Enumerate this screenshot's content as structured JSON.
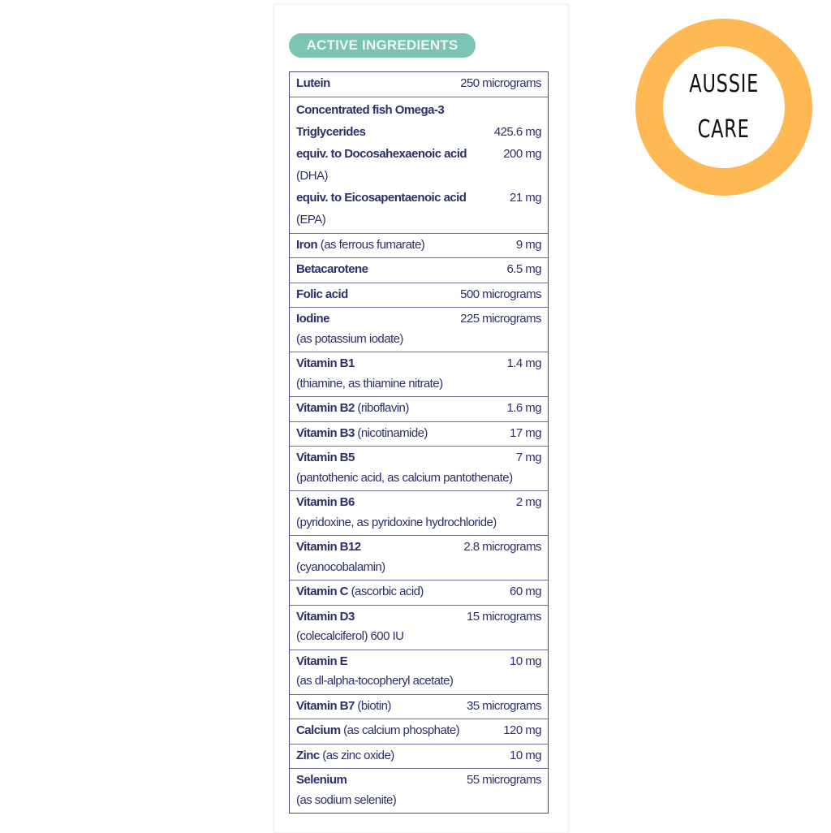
{
  "header": {
    "title": "ACTIVE INGREDIENTS"
  },
  "logo": {
    "line1": "AUSSIE",
    "line2": "CARE",
    "ring_color": "#feb955"
  },
  "colors": {
    "text": "#2d2f6b",
    "pill": "#7cc3b3",
    "border": "#4a4c80"
  },
  "rows": [
    {
      "lines": [
        {
          "name": "Lutein",
          "note": "",
          "amount": "250 micrograms"
        }
      ]
    },
    {
      "tall": true,
      "lines": [
        {
          "name": "Concentrated fish Omega-3",
          "note": "",
          "amount": ""
        },
        {
          "name": "Triglycerides",
          "note": "",
          "amount": "425.6 mg"
        },
        {
          "name": "equiv. to Docosahexaenoic acid",
          "note": "",
          "amount": "200 mg"
        },
        {
          "name": "",
          "note": "(DHA)",
          "amount": ""
        },
        {
          "name": "equiv. to Eicosapentaenoic acid",
          "note": "",
          "amount": "21 mg"
        },
        {
          "name": "",
          "note": "(EPA)",
          "amount": ""
        }
      ]
    },
    {
      "lines": [
        {
          "name": "Iron",
          "note": " (as ferrous fumarate)",
          "amount": "9 mg"
        }
      ]
    },
    {
      "lines": [
        {
          "name": "Betacarotene",
          "note": "",
          "amount": "6.5 mg"
        }
      ]
    },
    {
      "lines": [
        {
          "name": "Folic acid",
          "note": "",
          "amount": "500 micrograms"
        }
      ]
    },
    {
      "lines": [
        {
          "name": "Iodine",
          "note": "",
          "amount": "225 micrograms"
        },
        {
          "name": "",
          "note": "(as potassium iodate)",
          "amount": ""
        }
      ]
    },
    {
      "lines": [
        {
          "name": "Vitamin B1",
          "note": "",
          "amount": "1.4 mg"
        },
        {
          "name": "",
          "note": "(thiamine, as thiamine nitrate)",
          "amount": ""
        }
      ]
    },
    {
      "lines": [
        {
          "name": "Vitamin B2",
          "note": " (riboflavin)",
          "amount": "1.6 mg"
        }
      ]
    },
    {
      "lines": [
        {
          "name": "Vitamin B3",
          "note": " (nicotinamide)",
          "amount": "17 mg"
        }
      ]
    },
    {
      "lines": [
        {
          "name": "Vitamin B5",
          "note": "",
          "amount": "7 mg"
        },
        {
          "name": "",
          "note": "(pantothenic acid, as calcium pantothenate)",
          "amount": ""
        }
      ]
    },
    {
      "lines": [
        {
          "name": "Vitamin B6",
          "note": "",
          "amount": "2 mg"
        },
        {
          "name": "",
          "note": "(pyridoxine, as pyridoxine hydrochloride)",
          "amount": ""
        }
      ]
    },
    {
      "lines": [
        {
          "name": "Vitamin B12",
          "note": "",
          "amount": "2.8 micrograms"
        },
        {
          "name": "",
          "note": "(cyanocobalamin)",
          "amount": ""
        }
      ]
    },
    {
      "lines": [
        {
          "name": "Vitamin C",
          "note": " (ascorbic acid)",
          "amount": "60 mg"
        }
      ]
    },
    {
      "lines": [
        {
          "name": "Vitamin D3",
          "note": "",
          "amount": "15 micrograms"
        },
        {
          "name": "",
          "note": "(colecalciferol) 600 IU",
          "amount": ""
        }
      ]
    },
    {
      "lines": [
        {
          "name": "Vitamin E",
          "note": "",
          "amount": "10 mg"
        },
        {
          "name": "",
          "note": "(as dl-alpha-tocopheryl acetate)",
          "amount": ""
        }
      ]
    },
    {
      "lines": [
        {
          "name": "Vitamin B7",
          "note": " (biotin)",
          "amount": "35 micrograms"
        }
      ]
    },
    {
      "lines": [
        {
          "name": "Calcium",
          "note": " (as calcium phosphate)",
          "amount": "120 mg"
        }
      ]
    },
    {
      "lines": [
        {
          "name": "Zinc",
          "note": " (as zinc oxide)",
          "amount": "10 mg"
        }
      ]
    },
    {
      "lines": [
        {
          "name": "Selenium",
          "note": "",
          "amount": "55 micrograms"
        },
        {
          "name": "",
          "note": "(as sodium selenite)",
          "amount": ""
        }
      ]
    }
  ]
}
